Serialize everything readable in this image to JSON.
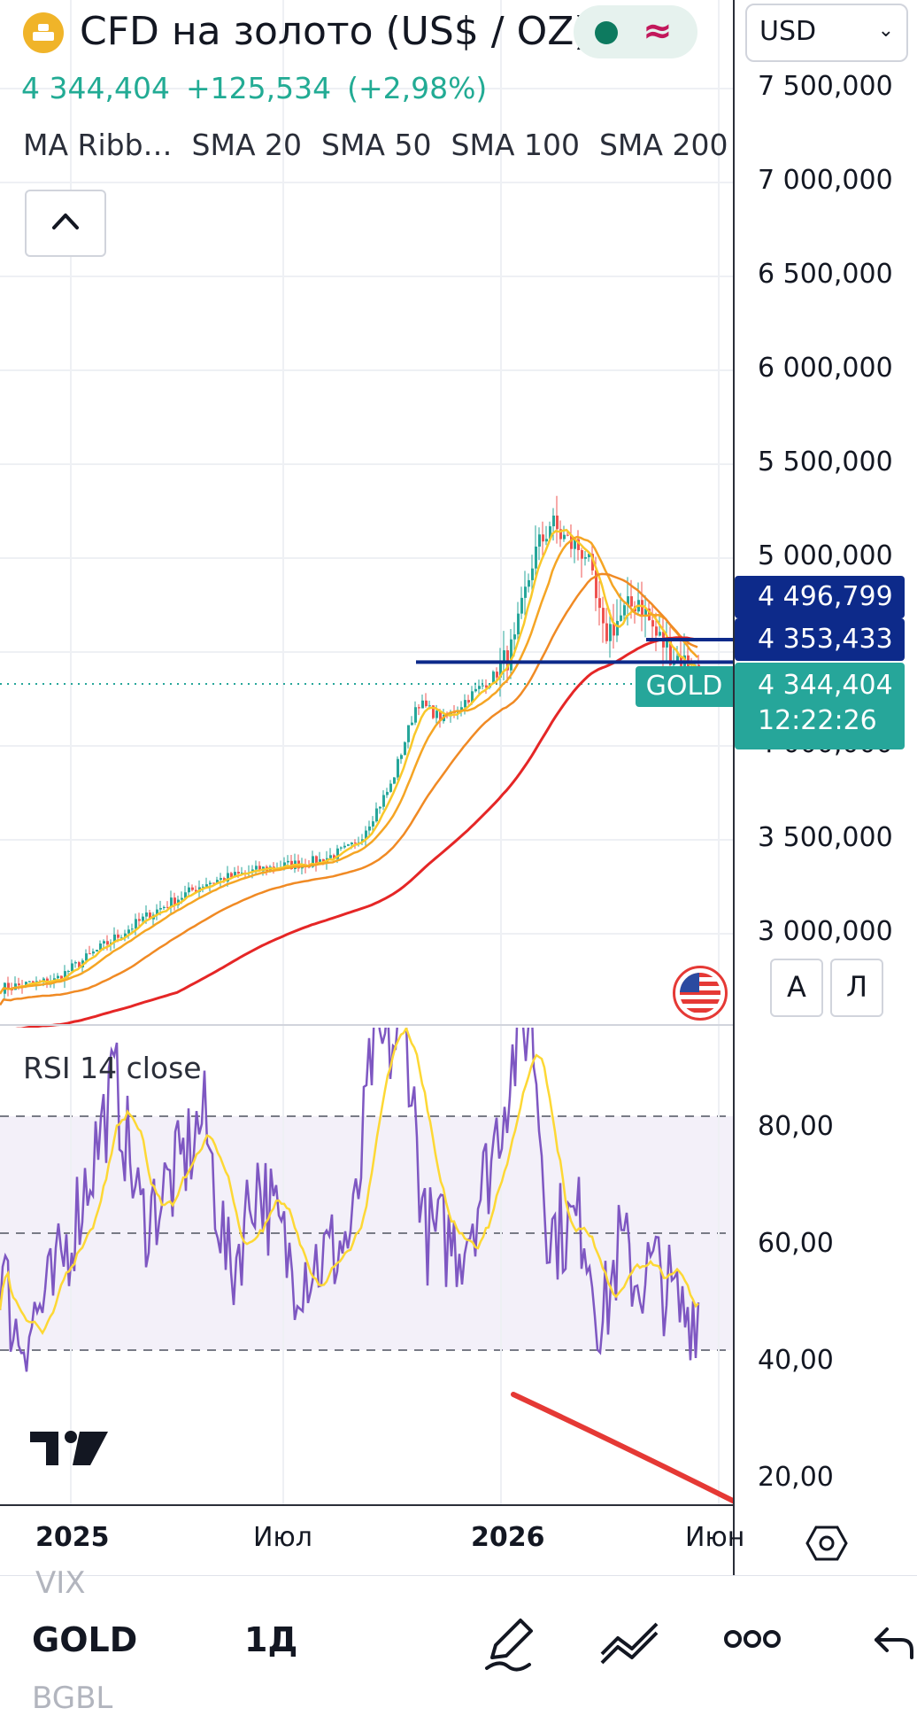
{
  "header": {
    "title": "CFD на золото (US$ / OZ)",
    "price": "4 344,404",
    "change": "+125,534",
    "change_pct": "(+2,98%)",
    "indicators": [
      "MA Ribb…",
      "SMA 20",
      "SMA 50",
      "SMA 100",
      "SMA 200"
    ],
    "logo_icon": "gold-bars-icon",
    "collapse_icon": "chevron-up-icon"
  },
  "currency_select": {
    "value": "USD"
  },
  "price_axis": {
    "ticks": [
      "7 500,000",
      "7 000,000",
      "6 500,000",
      "6 000,000",
      "5 500,000",
      "5 000,000",
      "4 000,000",
      "3 500,000",
      "3 000,000"
    ]
  },
  "price_labels": {
    "line1": "4 496,799",
    "line2": "4 353,433",
    "current": "4 344,404",
    "countdown": "12:22:26",
    "symbol_tag": "GOLD"
  },
  "scale_buttons": {
    "auto": "A",
    "log": "Л"
  },
  "rsi": {
    "title": "RSI 14 close",
    "ticks": [
      "80,00",
      "60,00",
      "40,00",
      "20,00"
    ]
  },
  "time_axis": {
    "ticks": [
      "2025",
      "Июл",
      "2026",
      "Июн"
    ]
  },
  "bottom_bar": {
    "ghost_top": "VIX",
    "symbol": "GOLD",
    "interval": "1Д",
    "ghost_bottom": "BGBL"
  },
  "colors": {
    "up": "#22ab94",
    "candle_up": "#26a69a",
    "candle_down": "#ef5350",
    "navy": "#0d2a8a",
    "rsi_line": "#7e57c2",
    "rsi_ma": "#fdd835",
    "sma20": "#f9c82a",
    "sma50": "#f5a524",
    "sma100": "#f08a24",
    "sma200": "#e52626"
  }
}
